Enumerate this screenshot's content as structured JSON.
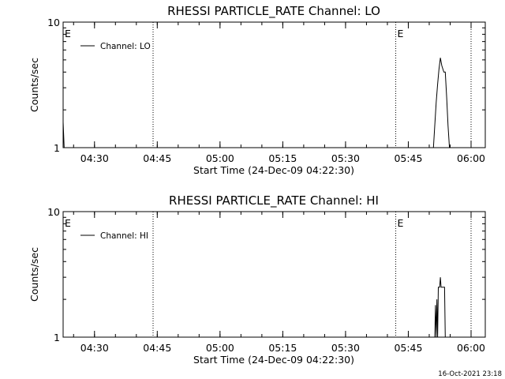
{
  "footer": {
    "timestamp": "16-Oct-2021 23:18"
  },
  "chart_data": [
    {
      "type": "line",
      "title": "RHESSI PARTICLE_RATE Channel: LO",
      "xlabel": "Start Time (24-Dec-09 04:22:30)",
      "ylabel": "Counts/sec",
      "y_scale": "log",
      "ylim": [
        1,
        10
      ],
      "y_ticks": [
        "1",
        "10"
      ],
      "x_ticks": [
        "04:30",
        "04:45",
        "05:00",
        "05:15",
        "05:30",
        "05:45",
        "06:00"
      ],
      "legend": {
        "position": "top-left",
        "entries": [
          "Channel: LO"
        ]
      },
      "event_markers": [
        {
          "time": "04:22:30",
          "label": "E"
        },
        {
          "time": "04:44:00",
          "label": ""
        },
        {
          "time": "05:42:00",
          "label": "E"
        },
        {
          "time": "06:00:00",
          "label": ""
        }
      ],
      "series": [
        {
          "name": "Channel: LO",
          "points": [
            [
              "04:22:30",
              1.6
            ],
            [
              "04:22:45",
              1.0
            ],
            [
              "05:51:00",
              1.0
            ],
            [
              "05:51:20",
              1.5
            ],
            [
              "05:51:40",
              2.3
            ],
            [
              "05:52:00",
              3.2
            ],
            [
              "05:52:20",
              4.2
            ],
            [
              "05:52:40",
              5.2
            ],
            [
              "05:53:00",
              4.5
            ],
            [
              "05:53:30",
              4.0
            ],
            [
              "05:53:50",
              4.0
            ],
            [
              "05:54:10",
              2.5
            ],
            [
              "05:54:30",
              1.5
            ],
            [
              "05:54:50",
              1.0
            ]
          ]
        }
      ]
    },
    {
      "type": "line",
      "title": "RHESSI PARTICLE_RATE Channel: HI",
      "xlabel": "Start Time (24-Dec-09 04:22:30)",
      "ylabel": "Counts/sec",
      "y_scale": "log",
      "ylim": [
        1,
        10
      ],
      "y_ticks": [
        "1",
        "10"
      ],
      "x_ticks": [
        "04:30",
        "04:45",
        "05:00",
        "05:15",
        "05:30",
        "05:45",
        "06:00"
      ],
      "legend": {
        "position": "top-left",
        "entries": [
          "Channel: HI"
        ]
      },
      "event_markers": [
        {
          "time": "04:22:30",
          "label": "E"
        },
        {
          "time": "04:44:00",
          "label": ""
        },
        {
          "time": "05:42:00",
          "label": "E"
        },
        {
          "time": "06:00:00",
          "label": ""
        }
      ],
      "series": [
        {
          "name": "Channel: HI",
          "points": [
            [
              "05:51:20",
              1.0
            ],
            [
              "05:51:30",
              1.8
            ],
            [
              "05:51:40",
              1.0
            ],
            [
              "05:51:50",
              2.0
            ],
            [
              "05:52:00",
              1.0
            ],
            [
              "05:52:10",
              2.5
            ],
            [
              "05:52:30",
              2.5
            ],
            [
              "05:52:40",
              3.0
            ],
            [
              "05:52:50",
              2.5
            ],
            [
              "05:53:40",
              2.5
            ],
            [
              "05:53:50",
              1.0
            ]
          ]
        }
      ]
    }
  ]
}
